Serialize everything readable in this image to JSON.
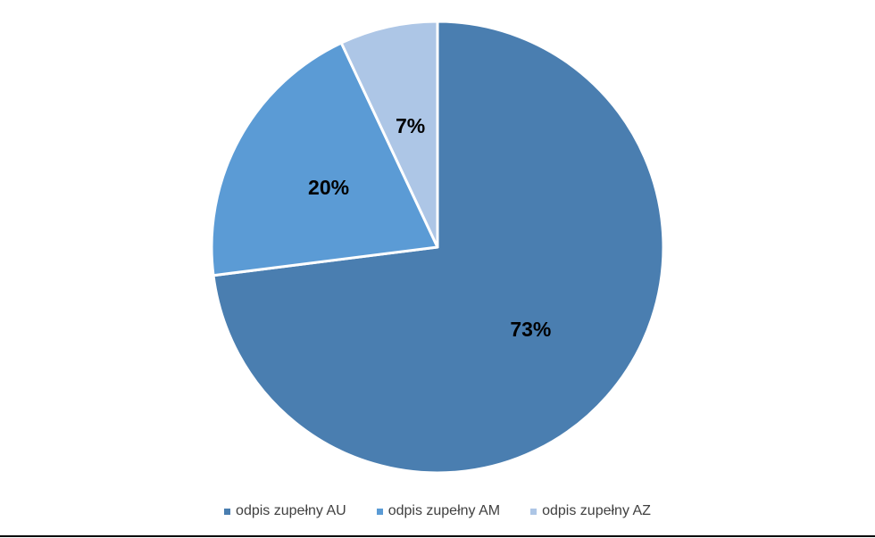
{
  "chart_data": {
    "type": "pie",
    "title": "",
    "start_angle_deg": 0,
    "direction": "clockwise",
    "series": [
      {
        "values": [
          73,
          20,
          7
        ],
        "labels": [
          "73%",
          "20%",
          "7%"
        ]
      }
    ],
    "categories": [
      "odpis zupełny AU",
      "odpis zupełny AM",
      "odpis zupełny AZ"
    ],
    "colors": [
      "#4a7eb0",
      "#5b9bd5",
      "#adc6e6"
    ],
    "legend_position": "bottom",
    "slice_border_color": "#ffffff"
  }
}
